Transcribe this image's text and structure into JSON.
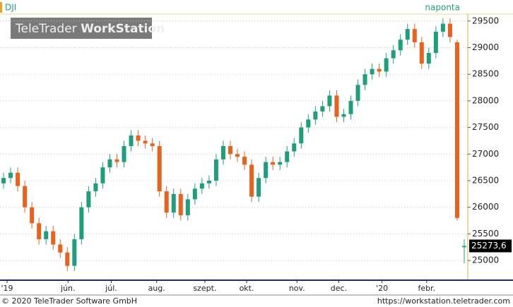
{
  "chart_data": {
    "type": "candlestick",
    "title": "DJI",
    "subtitle": "naponta",
    "watermark": [
      "TeleTrader",
      "WorkStation"
    ],
    "up_color": "#1f9e7e",
    "down_color": "#e8621e",
    "grid": true,
    "xlim": [
      0,
      66
    ],
    "xticks": [
      {
        "value": 1.0,
        "label": "'19"
      },
      {
        "value": 9.6,
        "label": "jún."
      },
      {
        "value": 15.7,
        "label": "júl."
      },
      {
        "value": 22.1,
        "label": "aug."
      },
      {
        "value": 28.9,
        "label": "szept."
      },
      {
        "value": 34.8,
        "label": "okt."
      },
      {
        "value": 41.9,
        "label": "nov."
      },
      {
        "value": 47.8,
        "label": "dec."
      },
      {
        "value": 53.9,
        "label": "'20"
      },
      {
        "value": 60.2,
        "label": "febr."
      }
    ],
    "ylim": [
      24630,
      29630
    ],
    "yticks": [
      25000,
      25500,
      26000,
      26500,
      27000,
      27500,
      28000,
      28500,
      29000,
      29500
    ],
    "open": [
      26450,
      26550,
      26650,
      26400,
      26000,
      25700,
      25400,
      25550,
      25300,
      25150,
      24900,
      25400,
      26000,
      26300,
      26450,
      26750,
      26900,
      26850,
      27150,
      27350,
      27250,
      27200,
      27150,
      26300,
      25900,
      26250,
      25850,
      26150,
      26350,
      26450,
      26500,
      26900,
      27150,
      27000,
      26950,
      26800,
      26200,
      26550,
      26850,
      26800,
      26850,
      27050,
      27200,
      27500,
      27650,
      27800,
      27900,
      28100,
      27700,
      27750,
      28000,
      28300,
      28500,
      28600,
      28550,
      28800,
      28950,
      29150,
      29350,
      29100,
      28700,
      28900,
      29300,
      29450,
      29100,
      25250
    ],
    "high": [
      26650,
      26750,
      26750,
      26500,
      26100,
      25800,
      25650,
      25650,
      25400,
      25250,
      25500,
      26100,
      26400,
      26550,
      26850,
      27000,
      27000,
      27250,
      27450,
      27450,
      27350,
      27300,
      27250,
      26400,
      26350,
      26350,
      26250,
      26450,
      26550,
      26600,
      27000,
      27250,
      27250,
      27100,
      27050,
      26900,
      26650,
      26950,
      26950,
      26950,
      27150,
      27300,
      27600,
      27750,
      27900,
      28000,
      28200,
      28200,
      27850,
      28100,
      28400,
      28600,
      28700,
      28700,
      28900,
      29050,
      29250,
      29450,
      29450,
      29200,
      29000,
      29400,
      29550,
      29550,
      29150,
      25400
    ],
    "low": [
      26350,
      26450,
      26300,
      25900,
      25600,
      25300,
      25300,
      25200,
      25050,
      24800,
      24800,
      25300,
      25900,
      26200,
      26350,
      26650,
      26750,
      26750,
      27050,
      27150,
      27100,
      27050,
      26200,
      25800,
      25800,
      25750,
      25750,
      26050,
      26250,
      26350,
      26400,
      26800,
      26900,
      26850,
      26700,
      26100,
      26100,
      26450,
      26700,
      26700,
      26750,
      26950,
      27100,
      27400,
      27550,
      27700,
      27800,
      27600,
      27600,
      27650,
      27900,
      28200,
      28400,
      28450,
      28450,
      28700,
      28850,
      29050,
      29000,
      28600,
      28600,
      28800,
      29200,
      29100,
      25750,
      24950
    ],
    "close": [
      26550,
      26650,
      26400,
      26000,
      25700,
      25400,
      25550,
      25300,
      25150,
      24900,
      25400,
      26000,
      26300,
      26450,
      26750,
      26900,
      26850,
      27150,
      27350,
      27250,
      27200,
      27150,
      26300,
      25900,
      26250,
      25850,
      26150,
      26350,
      26450,
      26500,
      26900,
      27150,
      27000,
      26950,
      26800,
      26200,
      26550,
      26850,
      26800,
      26850,
      27050,
      27200,
      27500,
      27650,
      27800,
      27900,
      28100,
      27700,
      27750,
      28000,
      28300,
      28500,
      28600,
      28550,
      28800,
      28950,
      29150,
      29350,
      29100,
      28700,
      28900,
      29300,
      29450,
      29200,
      25800,
      25273.6
    ],
    "last_value_label": "25273,6"
  },
  "footer": {
    "left": "© 2020 TeleTrader Software GmbH",
    "right": "https://workstation.teletrader.com"
  }
}
